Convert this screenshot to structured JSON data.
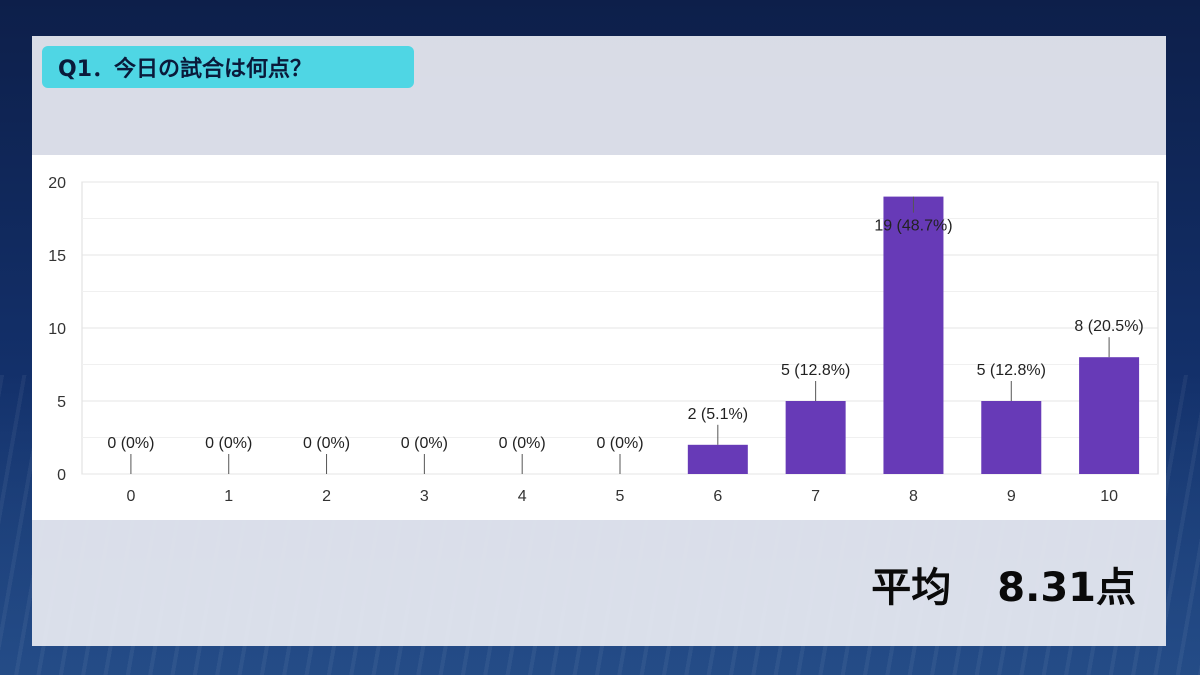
{
  "title": "Q1．今日の試合は何点？",
  "average": {
    "label": "平均",
    "value": "8.31点"
  },
  "colors": {
    "bar": "#673ab7",
    "title_bg": "#4fd6e4",
    "grid": "#e4e4e4"
  },
  "chart_data": {
    "type": "bar",
    "categories": [
      "0",
      "1",
      "2",
      "3",
      "4",
      "5",
      "6",
      "7",
      "8",
      "9",
      "10"
    ],
    "values": [
      0,
      0,
      0,
      0,
      0,
      0,
      2,
      5,
      19,
      5,
      8
    ],
    "labels": [
      "0 (0%)",
      "0 (0%)",
      "0 (0%)",
      "0 (0%)",
      "0 (0%)",
      "0 (0%)",
      "2 (5.1%)",
      "5 (12.8%)",
      "19 (48.7%)",
      "5 (12.8%)",
      "8 (20.5%)"
    ],
    "yticks": [
      "0",
      "5",
      "10",
      "15",
      "20"
    ],
    "ylim": [
      0,
      20
    ],
    "grid": true,
    "legend": "none"
  }
}
